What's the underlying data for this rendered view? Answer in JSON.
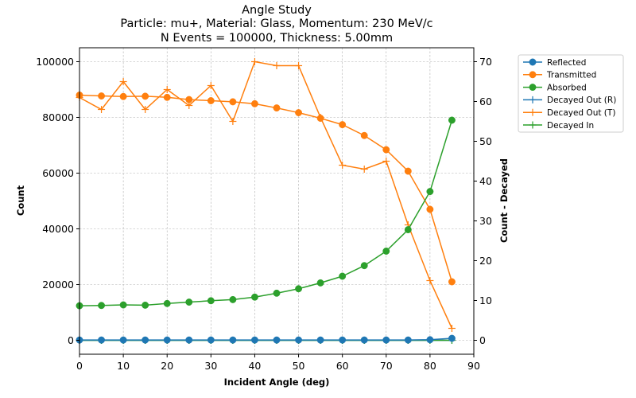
{
  "chart_data": {
    "type": "line",
    "title": [
      "Angle Study",
      "Particle: mu+, Material: Glass, Momentum: 230 MeV/c",
      "N Events = 100000, Thickness: 5.00mm"
    ],
    "xlabel": "Incident Angle (deg)",
    "ylabel": "Count",
    "y2label": "Count - Decayed",
    "y2label_color": "#ff0000",
    "xlim": [
      0,
      90
    ],
    "ylim": [
      -5000,
      105000
    ],
    "y2lim": [
      -3.5,
      73.5
    ],
    "xticks": [
      "0",
      "10",
      "20",
      "30",
      "40",
      "50",
      "60",
      "70",
      "80",
      "90"
    ],
    "yticks": [
      "0",
      "20000",
      "40000",
      "60000",
      "80000",
      "100000"
    ],
    "y2ticks": [
      "0",
      "10",
      "20",
      "30",
      "40",
      "50",
      "60",
      "70"
    ],
    "grid": true,
    "legend_position": "outside-right",
    "x": [
      0,
      5,
      10,
      15,
      20,
      25,
      30,
      35,
      40,
      45,
      50,
      55,
      60,
      65,
      70,
      75,
      80,
      85
    ],
    "series": [
      {
        "name": "Reflected",
        "axis": "left",
        "marker": "circle",
        "color": "#1f77b4",
        "values": [
          100,
          100,
          100,
          100,
          100,
          100,
          100,
          100,
          100,
          100,
          100,
          100,
          100,
          100,
          100,
          100,
          200,
          700
        ]
      },
      {
        "name": "Transmitted",
        "axis": "left",
        "marker": "circle",
        "color": "#ff7f0e",
        "values": [
          88000,
          87700,
          87500,
          87600,
          87200,
          86400,
          86000,
          85600,
          84900,
          83400,
          81700,
          79700,
          77400,
          73500,
          68400,
          60700,
          47000,
          21000
        ]
      },
      {
        "name": "Absorbed",
        "axis": "left",
        "marker": "circle",
        "color": "#2ca02c",
        "values": [
          12400,
          12500,
          12700,
          12600,
          13200,
          13700,
          14200,
          14600,
          15500,
          16900,
          18500,
          20600,
          23000,
          26800,
          32000,
          39700,
          53400,
          79000
        ]
      },
      {
        "name": "Decayed Out (R)",
        "axis": "right",
        "marker": "plus",
        "color": "#1f77b4",
        "values": [
          0,
          0,
          0,
          0,
          0,
          0,
          0,
          0,
          0,
          0,
          0,
          0,
          0,
          0,
          0,
          0,
          0,
          0
        ]
      },
      {
        "name": "Decayed Out (T)",
        "axis": "right",
        "marker": "plus",
        "color": "#ff7f0e",
        "values": [
          61,
          58,
          65,
          58,
          63,
          59,
          64,
          55,
          70,
          69,
          69,
          56,
          44,
          43,
          45,
          29,
          15,
          3
        ]
      },
      {
        "name": "Decayed In",
        "axis": "right",
        "marker": "plus",
        "color": "#2ca02c",
        "values": [
          0,
          0,
          0,
          0,
          0,
          0,
          0,
          0,
          0,
          0,
          0,
          0,
          0,
          0,
          0,
          0,
          0,
          0
        ]
      }
    ]
  }
}
